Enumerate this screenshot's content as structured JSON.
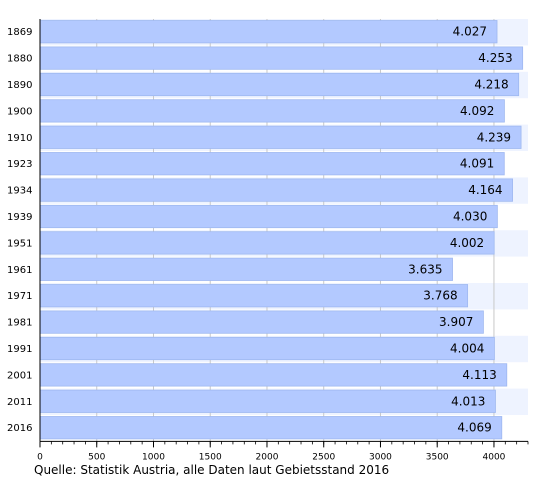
{
  "chart_data": {
    "type": "bar",
    "orientation": "horizontal",
    "categories": [
      "1869",
      "1880",
      "1890",
      "1900",
      "1910",
      "1923",
      "1934",
      "1939",
      "1951",
      "1961",
      "1971",
      "1981",
      "1991",
      "2001",
      "2011",
      "2016"
    ],
    "values": [
      4027,
      4253,
      4218,
      4092,
      4239,
      4091,
      4164,
      4030,
      4002,
      3635,
      3768,
      3907,
      4004,
      4113,
      4013,
      4069
    ],
    "value_labels": [
      "4.027",
      "4.253",
      "4.218",
      "4.092",
      "4.239",
      "4.091",
      "4.164",
      "4.030",
      "4.002",
      "3.635",
      "3.768",
      "3.907",
      "4.004",
      "4.113",
      "4.013",
      "4.069"
    ],
    "title": "",
    "xlabel": "",
    "ylabel": "",
    "xlim": [
      0,
      4300
    ],
    "xticks": [
      0,
      500,
      1000,
      1500,
      2000,
      2500,
      3000,
      3500,
      4000
    ],
    "xminor_step": 100,
    "grid": "vertical lines at major ticks",
    "legend": "none",
    "bar_color": "#b3c9ff",
    "bar_edge_color": "#9fb8f0",
    "band_color": "#eef3ff"
  },
  "source_note": "Quelle: Statistik Austria, alle Daten laut Gebietsstand 2016"
}
